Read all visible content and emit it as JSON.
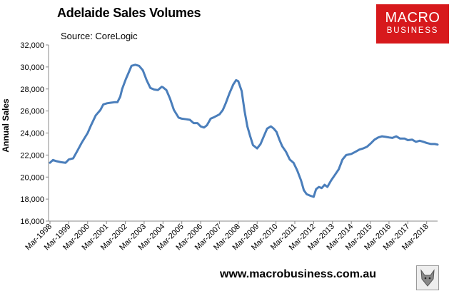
{
  "header": {
    "title": "Adelaide Sales Volumes",
    "source": "Source: CoreLogic"
  },
  "logo": {
    "line1": "MACRO",
    "line2": "BUSINESS"
  },
  "footer": {
    "url": "www.macrobusiness.com.au"
  },
  "colors": {
    "line": "#4a7ebb",
    "logo_bg": "#d7191c"
  },
  "chart_data": {
    "type": "line",
    "title": "Adelaide Sales Volumes",
    "xlabel": "",
    "ylabel": "Annual Sales",
    "ylim": [
      16000,
      32000
    ],
    "yticks": [
      16000,
      18000,
      20000,
      22000,
      24000,
      26000,
      28000,
      30000,
      32000
    ],
    "ytick_labels": [
      "16,000",
      "18,000",
      "20,000",
      "22,000",
      "24,000",
      "26,000",
      "28,000",
      "30,000",
      "32,000"
    ],
    "xtick_labels": [
      "Mar-1998",
      "Mar-1999",
      "Mar-2000",
      "Mar-2001",
      "Mar-2002",
      "Mar-2003",
      "Mar-2004",
      "Mar-2005",
      "Mar-2006",
      "Mar-2007",
      "Mar-2008",
      "Mar-2009",
      "Mar-2010",
      "Mar-2011",
      "Mar-2012",
      "Mar-2013",
      "Mar-2014",
      "Mar-2015",
      "Mar-2016",
      "Mar-2017",
      "Mar-2018"
    ],
    "xrange": [
      1998.17,
      2018.75
    ],
    "grid": false,
    "series": [
      {
        "x": [
          1998.17,
          1998.33,
          1998.5,
          1998.75,
          1999.0,
          1999.17,
          1999.4,
          1999.6,
          1999.85,
          2000.17,
          2000.35,
          2000.6,
          2000.85,
          2001.0,
          2001.2,
          2001.4,
          2001.6,
          2001.75,
          2001.9,
          2002.0,
          2002.2,
          2002.35,
          2002.5,
          2002.7,
          2002.9,
          2003.1,
          2003.3,
          2003.5,
          2003.7,
          2003.9,
          2004.1,
          2004.17,
          2004.35,
          2004.55,
          2004.75,
          2005.0,
          2005.17,
          2005.4,
          2005.6,
          2005.8,
          2006.0,
          2006.17,
          2006.35,
          2006.5,
          2006.7,
          2006.9,
          2007.17,
          2007.35,
          2007.5,
          2007.7,
          2007.9,
          2008.05,
          2008.17,
          2008.35,
          2008.5,
          2008.65,
          2008.8,
          2008.95,
          2009.17,
          2009.35,
          2009.5,
          2009.7,
          2009.9,
          2010.05,
          2010.2,
          2010.35,
          2010.5,
          2010.7,
          2010.9,
          2011.1,
          2011.3,
          2011.5,
          2011.65,
          2011.8,
          2012.0,
          2012.17,
          2012.3,
          2012.45,
          2012.6,
          2012.75,
          2012.9,
          2013.1,
          2013.3,
          2013.5,
          2013.7,
          2013.9,
          2014.17,
          2014.4,
          2014.6,
          2014.8,
          2015.0,
          2015.17,
          2015.4,
          2015.6,
          2015.8,
          2016.0,
          2016.17,
          2016.35,
          2016.55,
          2016.75,
          2017.0,
          2017.17,
          2017.4,
          2017.6,
          2017.8,
          2018.0,
          2018.17,
          2018.4,
          2018.6,
          2018.75
        ],
        "y": [
          21300,
          21550,
          21450,
          21350,
          21300,
          21600,
          21700,
          22300,
          23100,
          24000,
          24700,
          25600,
          26100,
          26600,
          26700,
          26750,
          26800,
          26800,
          27300,
          28000,
          28900,
          29500,
          30100,
          30200,
          30100,
          29700,
          28800,
          28100,
          27950,
          27900,
          28200,
          28150,
          27900,
          27100,
          26100,
          25400,
          25300,
          25250,
          25200,
          24900,
          24900,
          24600,
          24500,
          24700,
          25300,
          25450,
          25700,
          26100,
          26700,
          27600,
          28400,
          28800,
          28700,
          27800,
          26000,
          24600,
          23700,
          22900,
          22600,
          23000,
          23600,
          24400,
          24600,
          24400,
          24100,
          23400,
          22800,
          22300,
          21600,
          21300,
          20600,
          19700,
          18800,
          18450,
          18300,
          18200,
          18900,
          19100,
          19000,
          19300,
          19100,
          19700,
          20200,
          20700,
          21600,
          22000,
          22100,
          22300,
          22500,
          22600,
          22750,
          23000,
          23400,
          23600,
          23700,
          23650,
          23600,
          23550,
          23700,
          23500,
          23500,
          23350,
          23400,
          23200,
          23300,
          23200,
          23100,
          23000,
          23000,
          22950
        ]
      }
    ]
  }
}
